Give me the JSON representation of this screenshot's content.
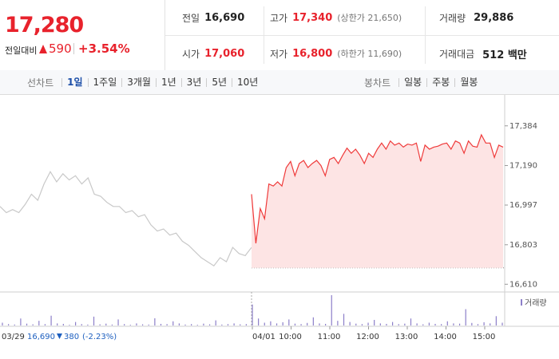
{
  "header": {
    "price": "17,280",
    "change_label": "전일대비",
    "change": "590",
    "change_pct": "+3.54%",
    "info": [
      {
        "label": "전일",
        "value": "16,690"
      },
      {
        "label": "고가",
        "value": "17,340",
        "note": "(상한가 21,650)"
      },
      {
        "label": "거래량",
        "value": "29,886"
      },
      {
        "label": "시가",
        "value": "17,060"
      },
      {
        "label": "저가",
        "value": "16,800",
        "note": "(하한가 11,690)"
      },
      {
        "label": "거래대금",
        "value": "512 백만"
      }
    ]
  },
  "tabs": {
    "line_label": "선차트",
    "line_items": [
      "1일",
      "1주일",
      "3개월",
      "1년",
      "3년",
      "5년",
      "10년"
    ],
    "active": "1일",
    "candle_label": "봉차트",
    "candle_items": [
      "일봉",
      "주봉",
      "월봉"
    ]
  },
  "chart_data": {
    "type": "line",
    "ylim": [
      16580,
      17500
    ],
    "yticks": [
      {
        "value": 17384,
        "label": "17,384"
      },
      {
        "value": 17190,
        "label": "17,190"
      },
      {
        "value": 16997,
        "label": "16,997"
      },
      {
        "value": 16803,
        "label": "16,803"
      },
      {
        "value": 16610,
        "label": "16,610"
      }
    ],
    "x_labels": [
      "04/01",
      "10:00",
      "11:00",
      "12:00",
      "13:00",
      "14:00",
      "15:00"
    ],
    "reference": 16690,
    "series": [
      {
        "color": "#c8c8c8",
        "values": [
          16990,
          16960,
          16975,
          16960,
          17000,
          17050,
          17020,
          17100,
          17160,
          17110,
          17150,
          17120,
          17140,
          17100,
          17130,
          17050,
          17040,
          17010,
          16990,
          16990,
          16960,
          16970,
          16940,
          16950,
          16900,
          16870,
          16880,
          16850,
          16860,
          16820,
          16800,
          16770,
          16740,
          16720,
          16700,
          16740,
          16720,
          16790,
          16760,
          16750,
          16790
        ]
      },
      {
        "color": "#ef3a3a",
        "values": [
          17050,
          16810,
          16980,
          16930,
          17100,
          17090,
          17110,
          17090,
          17180,
          17210,
          17140,
          17200,
          17215,
          17180,
          17200,
          17215,
          17190,
          17140,
          17220,
          17230,
          17200,
          17240,
          17275,
          17250,
          17270,
          17240,
          17200,
          17250,
          17230,
          17270,
          17300,
          17270,
          17310,
          17290,
          17300,
          17280,
          17295,
          17290,
          17300,
          17210,
          17290,
          17270,
          17280,
          17285,
          17295,
          17300,
          17270,
          17310,
          17300,
          17250,
          17310,
          17285,
          17280,
          17340,
          17300,
          17300,
          17230,
          17290,
          17280
        ]
      }
    ],
    "volume": {
      "name": "거래량",
      "color": "#8c7fc9",
      "values": [
        120,
        60,
        40,
        300,
        80,
        50,
        200,
        60,
        420,
        90,
        70,
        30,
        150,
        60,
        40,
        380,
        50,
        80,
        40,
        260,
        60,
        30,
        90,
        50,
        40,
        310,
        70,
        60,
        180,
        90,
        40,
        60,
        30,
        80,
        50,
        220,
        40,
        60,
        90,
        50,
        60,
        900,
        300,
        120,
        180,
        90,
        140,
        260,
        80,
        60,
        110,
        350,
        90,
        70,
        1300,
        200,
        500,
        150,
        80,
        60,
        120,
        240,
        90,
        70,
        150,
        60,
        80,
        300,
        90,
        50,
        120,
        70,
        60,
        180,
        90,
        80,
        700,
        110,
        60,
        140,
        90,
        400,
        120
      ]
    },
    "prev_summary": {
      "date": "03/29",
      "close": "16,690",
      "change": "380",
      "change_pct": "(-2.23%)"
    }
  }
}
